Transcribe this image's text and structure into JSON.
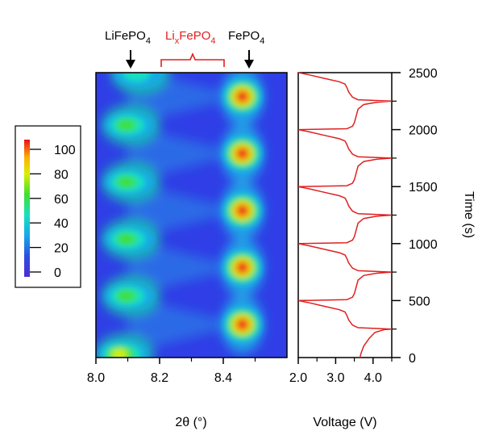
{
  "chart_data": [
    {
      "type": "heatmap",
      "title": "",
      "xlabel": "2θ (°)",
      "ylabel": "",
      "xlim": [
        8.0,
        8.6
      ],
      "ylim": [
        0,
        2500
      ],
      "x_ticks": [
        "8.0",
        "8.2",
        "8.4"
      ],
      "top_annotations": {
        "lifepo4": {
          "base": "LiFePO",
          "sub": "4",
          "x": 8.11,
          "color": "#000000",
          "arrow": true
        },
        "lixfepo4": {
          "pre": "Li",
          "sub_x": "x",
          "mid": "FePO",
          "sub": "4",
          "x_range": [
            8.2,
            8.4
          ],
          "color": "#e02020",
          "bracket": true
        },
        "fepo4": {
          "base": "FePO",
          "sub": "4",
          "x": 8.47,
          "color": "#000000",
          "arrow": true
        }
      },
      "colorbar": {
        "min": 0,
        "max": 100,
        "ticks": [
          "100",
          "80",
          "60",
          "40",
          "20",
          "0"
        ]
      },
      "features": [
        {
          "phase": "FePO4",
          "x": 8.46,
          "y": 290,
          "intensity": 100
        },
        {
          "phase": "FePO4",
          "x": 8.46,
          "y": 790,
          "intensity": 100
        },
        {
          "phase": "FePO4",
          "x": 8.46,
          "y": 1290,
          "intensity": 100
        },
        {
          "phase": "FePO4",
          "x": 8.46,
          "y": 1790,
          "intensity": 100
        },
        {
          "phase": "FePO4",
          "x": 8.46,
          "y": 2290,
          "intensity": 100
        },
        {
          "phase": "LiFePO4",
          "x": 8.07,
          "y": 30,
          "intensity": 80
        },
        {
          "phase": "LiFePO4",
          "x": 8.09,
          "y": 540,
          "intensity": 60
        },
        {
          "phase": "LiFePO4",
          "x": 8.09,
          "y": 1040,
          "intensity": 60
        },
        {
          "phase": "LiFePO4",
          "x": 8.09,
          "y": 1540,
          "intensity": 60
        },
        {
          "phase": "LiFePO4",
          "x": 8.09,
          "y": 2040,
          "intensity": 60
        },
        {
          "phase": "LiFePO4",
          "x": 8.12,
          "y": 2490,
          "intensity": 55
        }
      ]
    },
    {
      "type": "line",
      "title": "",
      "xlabel": "Voltage (V)",
      "ylabel": "Time (s)",
      "xlim": [
        2.0,
        4.5
      ],
      "ylim": [
        0,
        2500
      ],
      "x_ticks": [
        "2.0",
        "3.0",
        "4.0"
      ],
      "y_ticks": [
        "0",
        "500",
        "1000",
        "1500",
        "2000",
        "2500"
      ],
      "color": "#e02020",
      "series": [
        {
          "points": [
            [
              3.65,
              0
            ],
            [
              3.68,
              40
            ],
            [
              3.75,
              100
            ],
            [
              3.9,
              170
            ],
            [
              4.05,
              220
            ],
            [
              4.3,
              245
            ],
            [
              4.5,
              250
            ],
            [
              4.5,
              250
            ],
            [
              3.6,
              262
            ],
            [
              3.45,
              285
            ],
            [
              3.35,
              330
            ],
            [
              3.3,
              370
            ],
            [
              3.25,
              400
            ],
            [
              3.1,
              420
            ],
            [
              2.7,
              450
            ],
            [
              2.3,
              480
            ],
            [
              2.0,
              500
            ],
            [
              2.0,
              500
            ],
            [
              3.3,
              508
            ],
            [
              3.45,
              530
            ],
            [
              3.5,
              560
            ],
            [
              3.55,
              620
            ],
            [
              3.6,
              680
            ],
            [
              3.75,
              720
            ],
            [
              4.1,
              740
            ],
            [
              4.5,
              750
            ],
            [
              4.5,
              750
            ],
            [
              3.6,
              762
            ],
            [
              3.45,
              785
            ],
            [
              3.35,
              830
            ],
            [
              3.3,
              870
            ],
            [
              3.25,
              900
            ],
            [
              3.1,
              920
            ],
            [
              2.7,
              950
            ],
            [
              2.3,
              980
            ],
            [
              2.0,
              1000
            ],
            [
              2.0,
              1000
            ],
            [
              3.3,
              1008
            ],
            [
              3.45,
              1030
            ],
            [
              3.5,
              1060
            ],
            [
              3.55,
              1120
            ],
            [
              3.6,
              1180
            ],
            [
              3.75,
              1220
            ],
            [
              4.1,
              1240
            ],
            [
              4.5,
              1250
            ],
            [
              4.5,
              1250
            ],
            [
              3.6,
              1262
            ],
            [
              3.45,
              1285
            ],
            [
              3.35,
              1330
            ],
            [
              3.3,
              1370
            ],
            [
              3.25,
              1400
            ],
            [
              3.1,
              1420
            ],
            [
              2.7,
              1450
            ],
            [
              2.3,
              1480
            ],
            [
              2.0,
              1500
            ],
            [
              2.0,
              1500
            ],
            [
              3.3,
              1508
            ],
            [
              3.45,
              1530
            ],
            [
              3.5,
              1560
            ],
            [
              3.55,
              1620
            ],
            [
              3.6,
              1680
            ],
            [
              3.75,
              1720
            ],
            [
              4.1,
              1740
            ],
            [
              4.5,
              1750
            ],
            [
              4.5,
              1750
            ],
            [
              3.6,
              1762
            ],
            [
              3.45,
              1785
            ],
            [
              3.35,
              1830
            ],
            [
              3.3,
              1870
            ],
            [
              3.25,
              1900
            ],
            [
              3.1,
              1920
            ],
            [
              2.7,
              1950
            ],
            [
              2.3,
              1980
            ],
            [
              2.0,
              2000
            ],
            [
              2.0,
              2000
            ],
            [
              3.3,
              2008
            ],
            [
              3.45,
              2030
            ],
            [
              3.5,
              2060
            ],
            [
              3.55,
              2120
            ],
            [
              3.6,
              2180
            ],
            [
              3.75,
              2220
            ],
            [
              4.1,
              2240
            ],
            [
              4.5,
              2250
            ],
            [
              4.5,
              2250
            ],
            [
              3.6,
              2262
            ],
            [
              3.45,
              2285
            ],
            [
              3.35,
              2330
            ],
            [
              3.3,
              2370
            ],
            [
              3.25,
              2400
            ],
            [
              3.1,
              2420
            ],
            [
              2.7,
              2450
            ],
            [
              2.3,
              2480
            ],
            [
              2.0,
              2500
            ]
          ]
        }
      ]
    }
  ]
}
